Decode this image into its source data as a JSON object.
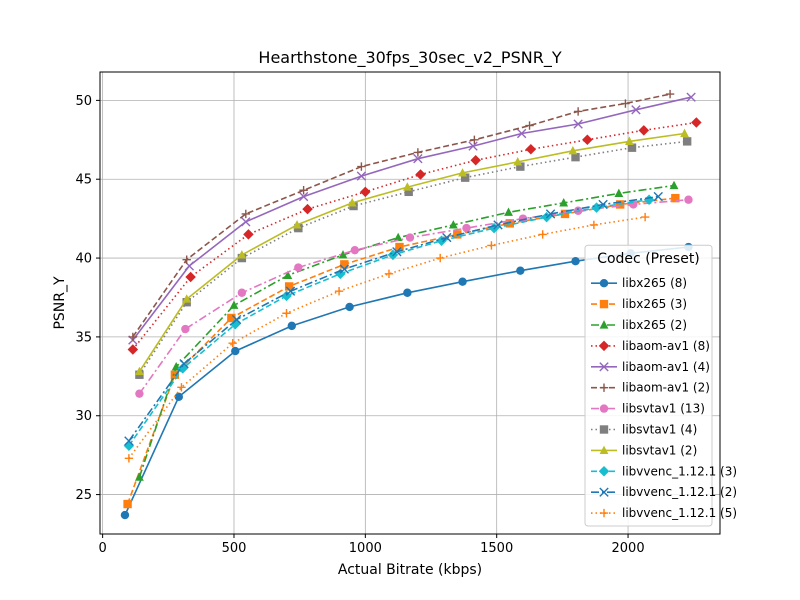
{
  "chart_data": {
    "type": "line",
    "title": "Hearthstone_30fps_30sec_v2_PSNR_Y",
    "xlabel": "Actual Bitrate (kbps)",
    "ylabel": "PSNR_Y",
    "xlim": [
      -10,
      2350
    ],
    "ylim": [
      22.5,
      51.8
    ],
    "xticks": [
      0,
      500,
      1000,
      1500,
      2000
    ],
    "yticks": [
      25,
      30,
      35,
      40,
      45,
      50
    ],
    "grid": true,
    "legend": {
      "title": "Codec (Preset)",
      "placement": "lower-right"
    },
    "series": [
      {
        "name": "libx265 (8)",
        "color": "#1f77b4",
        "marker": "circle",
        "dash": "solid",
        "x": [
          85,
          290,
          505,
          720,
          940,
          1160,
          1370,
          1590,
          1800,
          2010,
          2230
        ],
        "y": [
          23.7,
          31.2,
          34.1,
          35.7,
          36.9,
          37.8,
          38.5,
          39.2,
          39.8,
          40.3,
          40.7
        ]
      },
      {
        "name": "libx265 (3)",
        "color": "#ff7f0e",
        "marker": "square",
        "dash": "dashed",
        "x": [
          95,
          275,
          490,
          710,
          920,
          1130,
          1350,
          1550,
          1760,
          1970,
          2180
        ],
        "y": [
          24.4,
          32.6,
          36.2,
          38.2,
          39.6,
          40.7,
          41.5,
          42.2,
          42.8,
          43.4,
          43.8
        ]
      },
      {
        "name": "libx265 (2)",
        "color": "#2ca02c",
        "marker": "triangle",
        "dash": "dashdot",
        "x": [
          140,
          280,
          500,
          705,
          915,
          1125,
          1335,
          1545,
          1755,
          1965,
          2175
        ],
        "y": [
          26.1,
          33.1,
          37.0,
          38.9,
          40.2,
          41.3,
          42.1,
          42.9,
          43.5,
          44.1,
          44.6
        ]
      },
      {
        "name": "libaom-av1 (8)",
        "color": "#d62728",
        "marker": "diamond",
        "dash": "dotted",
        "x": [
          115,
          335,
          555,
          780,
          1000,
          1210,
          1420,
          1630,
          1845,
          2060,
          2260
        ],
        "y": [
          34.2,
          38.8,
          41.5,
          43.1,
          44.2,
          45.3,
          46.2,
          46.9,
          47.5,
          48.1,
          48.6
        ]
      },
      {
        "name": "libaom-av1 (4)",
        "color": "#9467bd",
        "marker": "x",
        "dash": "solid",
        "x": [
          115,
          330,
          545,
          765,
          985,
          1200,
          1410,
          1595,
          1810,
          2030,
          2240
        ],
        "y": [
          34.8,
          39.5,
          42.3,
          43.9,
          45.2,
          46.3,
          47.1,
          47.9,
          48.5,
          49.4,
          50.2
        ]
      },
      {
        "name": "libaom-av1 (2)",
        "color": "#8c564b",
        "marker": "plus",
        "dash": "dashed",
        "x": [
          115,
          320,
          545,
          765,
          985,
          1200,
          1415,
          1625,
          1810,
          1990,
          2160
        ],
        "y": [
          35.0,
          39.9,
          42.8,
          44.3,
          45.8,
          46.7,
          47.5,
          48.4,
          49.3,
          49.8,
          50.4
        ]
      },
      {
        "name": "libsvtav1 (13)",
        "color": "#e377c2",
        "marker": "circle",
        "dash": "dashdot",
        "x": [
          140,
          315,
          530,
          745,
          960,
          1170,
          1385,
          1600,
          1810,
          2020,
          2230
        ],
        "y": [
          31.4,
          35.5,
          37.8,
          39.4,
          40.5,
          41.3,
          41.9,
          42.5,
          43.0,
          43.4,
          43.7
        ]
      },
      {
        "name": "libsvtav1 (4)",
        "color": "#7f7f7f",
        "marker": "square",
        "dash": "dotted",
        "x": [
          140,
          320,
          530,
          745,
          955,
          1165,
          1380,
          1590,
          1800,
          2015,
          2225
        ],
        "y": [
          32.6,
          37.2,
          40.0,
          41.9,
          43.3,
          44.2,
          45.1,
          45.8,
          46.4,
          47.0,
          47.4
        ]
      },
      {
        "name": "libsvtav1 (2)",
        "color": "#bcbd22",
        "marker": "triangle",
        "dash": "solid",
        "x": [
          140,
          320,
          530,
          740,
          950,
          1160,
          1370,
          1580,
          1790,
          2005,
          2215
        ],
        "y": [
          32.8,
          37.4,
          40.2,
          42.1,
          43.5,
          44.5,
          45.4,
          46.1,
          46.8,
          47.4,
          47.9
        ]
      },
      {
        "name": "libvvenc_1.12.1 (3)",
        "color": "#17becf",
        "marker": "diamond",
        "dash": "dashed",
        "x": [
          100,
          305,
          505,
          700,
          905,
          1105,
          1290,
          1490,
          1690,
          1880,
          2080
        ],
        "y": [
          28.1,
          33.0,
          35.8,
          37.6,
          39.0,
          40.2,
          41.1,
          41.9,
          42.6,
          43.2,
          43.7
        ]
      },
      {
        "name": "libvvenc_1.12.1 (2)",
        "color": "#1f77b4",
        "marker": "x",
        "dash": "dashdot",
        "x": [
          100,
          310,
          510,
          715,
          920,
          1120,
          1310,
          1505,
          1705,
          1905,
          2115
        ],
        "y": [
          28.4,
          33.3,
          36.1,
          37.9,
          39.3,
          40.4,
          41.3,
          42.1,
          42.8,
          43.4,
          43.9
        ]
      },
      {
        "name": "libvvenc_1.12.1 (5)",
        "color": "#ff7f0e",
        "marker": "plus",
        "dash": "dotted",
        "x": [
          100,
          300,
          495,
          700,
          900,
          1090,
          1285,
          1480,
          1675,
          1870,
          2065
        ],
        "y": [
          27.3,
          31.8,
          34.6,
          36.5,
          37.9,
          39.0,
          40.0,
          40.8,
          41.5,
          42.1,
          42.6
        ]
      }
    ]
  }
}
